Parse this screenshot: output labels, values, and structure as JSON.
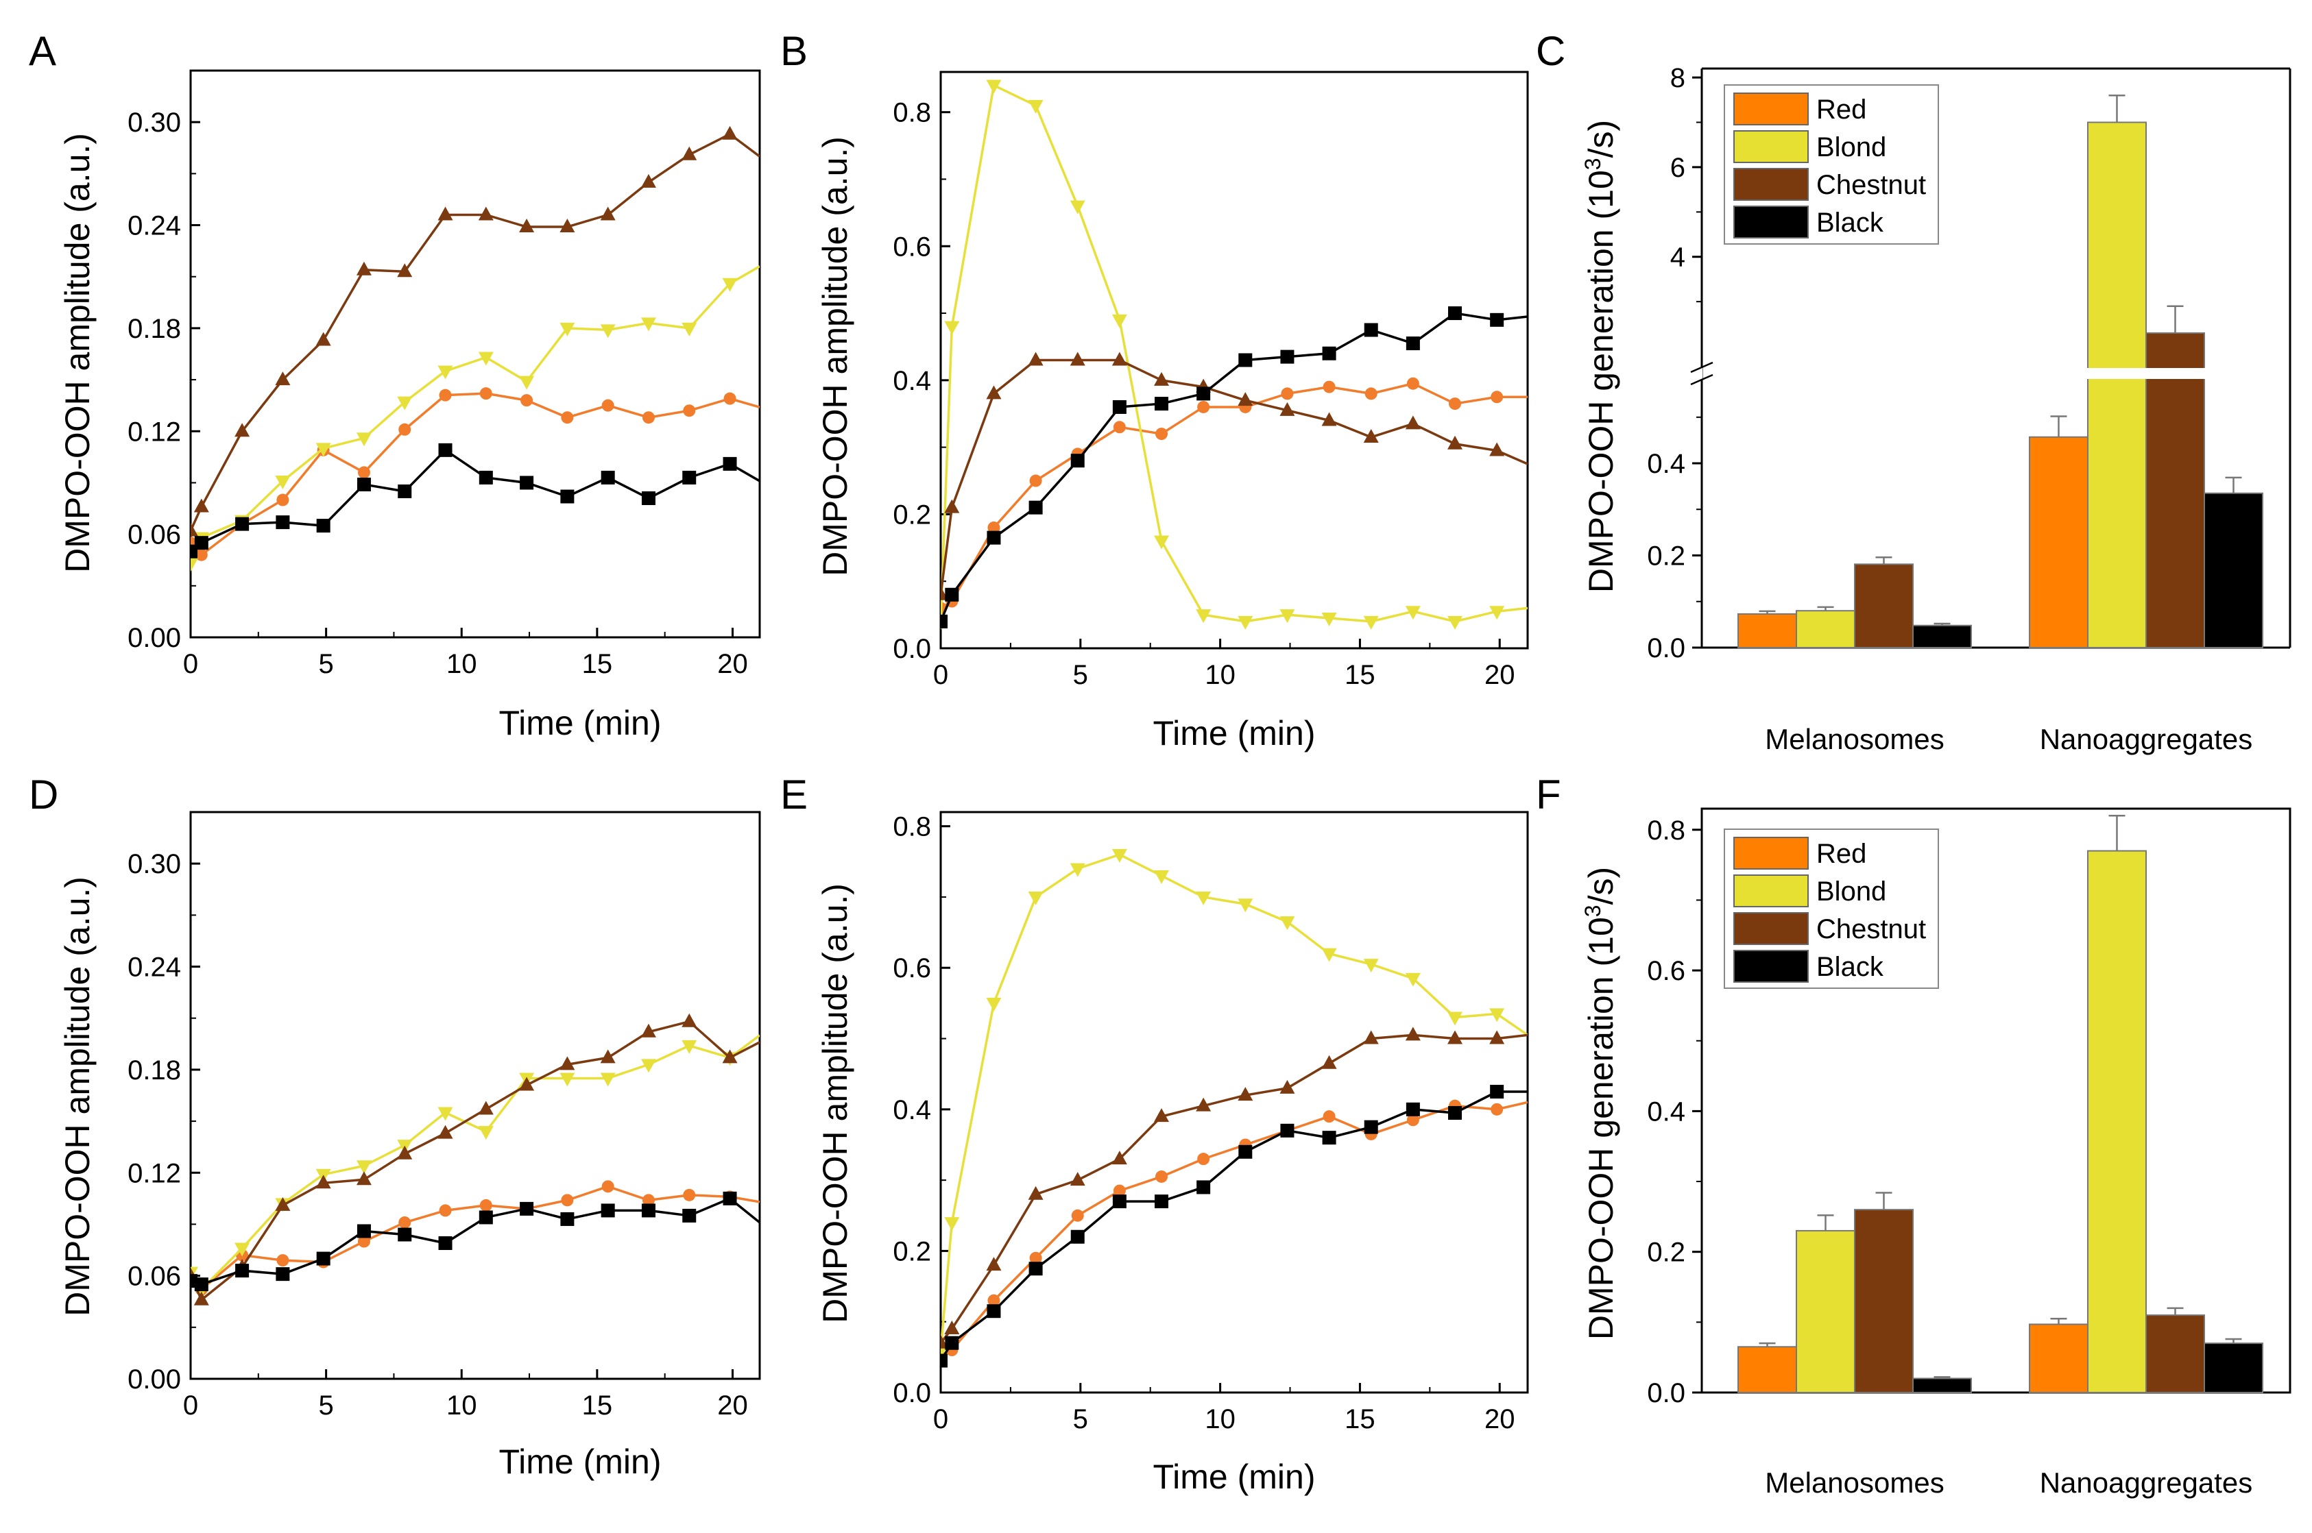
{
  "figure": {
    "time_xlabel": "Time (min)",
    "amp_ylabel": "DMPO-OOH amplitude (a.u.)",
    "gen_ylabel_main": "DMPO-OOH generation (10",
    "gen_ylabel_sup": "3",
    "gen_ylabel_tail": "/s)"
  },
  "series_styles": {
    "Red": {
      "color": "#F07C2C",
      "marker": "circle"
    },
    "Blond": {
      "color": "#E8E03A",
      "marker": "triangle-down"
    },
    "Chestnut": {
      "color": "#7B3A10",
      "marker": "triangle-up"
    },
    "Black": {
      "color": "#000000",
      "marker": "square"
    }
  },
  "bar_colors": {
    "Red": "#FF7F00",
    "Blond": "#E6E033",
    "Chestnut": "#7A3A0E",
    "Black": "#000000"
  },
  "chart_data": [
    {
      "panel": "A",
      "type": "line",
      "xlabel": "Time (min)",
      "ylabel": "DMPO-OOH amplitude (a.u.)",
      "xlim": [
        0,
        21
      ],
      "ylim": [
        0,
        0.33
      ],
      "xticks": [
        0,
        5,
        10,
        15,
        20
      ],
      "xtick_labels": [
        "0",
        "5",
        "10",
        "15",
        "20"
      ],
      "yticks": [
        0,
        0.06,
        0.12,
        0.18,
        0.24,
        0.3
      ],
      "ytick_labels": [
        "0.00",
        "0.06",
        "0.12",
        "0.18",
        "0.24",
        "0.30"
      ],
      "x": [
        0,
        0.4,
        1.9,
        3.4,
        4.9,
        6.4,
        7.9,
        9.4,
        10.9,
        12.4,
        13.9,
        15.4,
        16.9,
        18.4,
        19.9,
        21
      ],
      "series": [
        {
          "name": "Red",
          "values": [
            0.055,
            0.048,
            0.066,
            0.08,
            0.109,
            0.096,
            0.121,
            0.141,
            0.142,
            0.138,
            0.128,
            0.135,
            0.128,
            0.132,
            0.139,
            0.134
          ]
        },
        {
          "name": "Blond",
          "values": [
            0.043,
            0.058,
            0.068,
            0.091,
            0.11,
            0.116,
            0.137,
            0.155,
            0.163,
            0.149,
            0.18,
            0.179,
            0.183,
            0.18,
            0.206,
            0.216
          ]
        },
        {
          "name": "Chestnut",
          "values": [
            0.062,
            0.076,
            0.12,
            0.15,
            0.173,
            0.214,
            0.213,
            0.246,
            0.246,
            0.239,
            0.239,
            0.246,
            0.265,
            0.281,
            0.293,
            0.28
          ]
        },
        {
          "name": "Black",
          "values": [
            0.05,
            0.055,
            0.066,
            0.067,
            0.065,
            0.089,
            0.085,
            0.109,
            0.093,
            0.09,
            0.082,
            0.093,
            0.081,
            0.093,
            0.101,
            0.091
          ]
        }
      ]
    },
    {
      "panel": "B",
      "type": "line",
      "xlabel": "Time (min)",
      "ylabel": "DMPO-OOH amplitude (a.u.)",
      "xlim": [
        0,
        21
      ],
      "ylim": [
        0,
        0.86
      ],
      "xticks": [
        0,
        5,
        10,
        15,
        20
      ],
      "xtick_labels": [
        "0",
        "5",
        "10",
        "15",
        "20"
      ],
      "yticks": [
        0,
        0.2,
        0.4,
        0.6,
        0.8
      ],
      "ytick_labels": [
        "0.0",
        "0.2",
        "0.4",
        "0.6",
        "0.8"
      ],
      "x": [
        0,
        0.4,
        1.9,
        3.4,
        4.9,
        6.4,
        7.9,
        9.4,
        10.9,
        12.4,
        13.9,
        15.4,
        16.9,
        18.4,
        19.9,
        21
      ],
      "series": [
        {
          "name": "Red",
          "values": [
            0.06,
            0.07,
            0.18,
            0.25,
            0.29,
            0.33,
            0.32,
            0.36,
            0.36,
            0.38,
            0.39,
            0.38,
            0.395,
            0.365,
            0.375,
            0.375
          ]
        },
        {
          "name": "Blond",
          "values": [
            0.04,
            0.48,
            0.84,
            0.81,
            0.66,
            0.49,
            0.16,
            0.05,
            0.04,
            0.05,
            0.045,
            0.04,
            0.055,
            0.04,
            0.055,
            0.06
          ]
        },
        {
          "name": "Chestnut",
          "values": [
            0.08,
            0.21,
            0.38,
            0.43,
            0.43,
            0.43,
            0.4,
            0.39,
            0.37,
            0.355,
            0.34,
            0.315,
            0.335,
            0.305,
            0.295,
            0.275
          ]
        },
        {
          "name": "Black",
          "values": [
            0.04,
            0.08,
            0.165,
            0.21,
            0.28,
            0.36,
            0.365,
            0.38,
            0.43,
            0.435,
            0.44,
            0.475,
            0.455,
            0.5,
            0.49,
            0.495
          ]
        }
      ]
    },
    {
      "panel": "C",
      "type": "bar",
      "broken_axis": true,
      "ylabel": "DMPO-OOH generation (10^3/s)",
      "categories": [
        "Melanosomes",
        "Nanoaggregates"
      ],
      "lower_ylim": [
        0,
        0.58
      ],
      "lower_yticks": [
        0,
        0.2,
        0.4
      ],
      "lower_ytick_labels": [
        "0.0",
        "0.2",
        "0.4"
      ],
      "upper_ylim": [
        1.55,
        8.2
      ],
      "upper_yticks": [
        4,
        6,
        8
      ],
      "upper_ytick_labels": [
        "4",
        "6",
        "8"
      ],
      "series": [
        {
          "name": "Red",
          "values": [
            0.073,
            0.457
          ],
          "errors": [
            0.006,
            0.045
          ]
        },
        {
          "name": "Blond",
          "values": [
            0.08,
            7.0
          ],
          "errors": [
            0.008,
            0.6
          ]
        },
        {
          "name": "Chestnut",
          "values": [
            0.181,
            2.3
          ],
          "errors": [
            0.015,
            0.6
          ]
        },
        {
          "name": "Black",
          "values": [
            0.048,
            0.335
          ],
          "errors": [
            0.004,
            0.034
          ]
        }
      ],
      "legend": [
        "Red",
        "Blond",
        "Chestnut",
        "Black"
      ]
    },
    {
      "panel": "D",
      "type": "line",
      "xlabel": "Time (min)",
      "ylabel": "DMPO-OOH amplitude (a.u.)",
      "xlim": [
        0,
        21
      ],
      "ylim": [
        0,
        0.33
      ],
      "xticks": [
        0,
        5,
        10,
        15,
        20
      ],
      "xtick_labels": [
        "0",
        "5",
        "10",
        "15",
        "20"
      ],
      "yticks": [
        0,
        0.06,
        0.12,
        0.18,
        0.24,
        0.3
      ],
      "ytick_labels": [
        "0.00",
        "0.06",
        "0.12",
        "0.18",
        "0.24",
        "0.30"
      ],
      "x": [
        0,
        0.4,
        1.9,
        3.4,
        4.9,
        6.4,
        7.9,
        9.4,
        10.9,
        12.4,
        13.9,
        15.4,
        16.9,
        18.4,
        19.9,
        21
      ],
      "series": [
        {
          "name": "Red",
          "values": [
            0.058,
            0.052,
            0.072,
            0.069,
            0.068,
            0.08,
            0.091,
            0.098,
            0.101,
            0.099,
            0.104,
            0.112,
            0.104,
            0.107,
            0.106,
            0.103
          ]
        },
        {
          "name": "Blond",
          "values": [
            0.062,
            0.052,
            0.076,
            0.102,
            0.119,
            0.124,
            0.136,
            0.155,
            0.144,
            0.175,
            0.175,
            0.175,
            0.183,
            0.194,
            0.187,
            0.2
          ]
        },
        {
          "name": "Chestnut",
          "values": [
            0.06,
            0.046,
            0.065,
            0.101,
            0.114,
            0.116,
            0.131,
            0.143,
            0.157,
            0.171,
            0.183,
            0.187,
            0.202,
            0.208,
            0.187,
            0.196
          ]
        },
        {
          "name": "Black",
          "values": [
            0.057,
            0.055,
            0.063,
            0.061,
            0.07,
            0.086,
            0.084,
            0.079,
            0.094,
            0.099,
            0.093,
            0.098,
            0.098,
            0.095,
            0.105,
            0.091
          ]
        }
      ]
    },
    {
      "panel": "E",
      "type": "line",
      "xlabel": "Time (min)",
      "ylabel": "DMPO-OOH amplitude (a.u.)",
      "xlim": [
        0,
        21
      ],
      "ylim": [
        0,
        0.82
      ],
      "xticks": [
        0,
        5,
        10,
        15,
        20
      ],
      "xtick_labels": [
        "0",
        "5",
        "10",
        "15",
        "20"
      ],
      "yticks": [
        0,
        0.2,
        0.4,
        0.6,
        0.8
      ],
      "ytick_labels": [
        "0.0",
        "0.2",
        "0.4",
        "0.6",
        "0.8"
      ],
      "x": [
        0,
        0.4,
        1.9,
        3.4,
        4.9,
        6.4,
        7.9,
        9.4,
        10.9,
        12.4,
        13.9,
        15.4,
        16.9,
        18.4,
        19.9,
        21
      ],
      "series": [
        {
          "name": "Red",
          "values": [
            0.05,
            0.06,
            0.13,
            0.19,
            0.25,
            0.285,
            0.305,
            0.33,
            0.35,
            0.37,
            0.39,
            0.365,
            0.385,
            0.405,
            0.4,
            0.41
          ]
        },
        {
          "name": "Blond",
          "values": [
            0.06,
            0.24,
            0.55,
            0.7,
            0.74,
            0.76,
            0.73,
            0.7,
            0.69,
            0.665,
            0.62,
            0.605,
            0.585,
            0.53,
            0.535,
            0.505
          ]
        },
        {
          "name": "Chestnut",
          "values": [
            0.07,
            0.09,
            0.18,
            0.28,
            0.3,
            0.33,
            0.39,
            0.405,
            0.42,
            0.43,
            0.465,
            0.5,
            0.505,
            0.5,
            0.5,
            0.505
          ]
        },
        {
          "name": "Black",
          "values": [
            0.045,
            0.07,
            0.115,
            0.175,
            0.22,
            0.27,
            0.27,
            0.29,
            0.34,
            0.37,
            0.36,
            0.375,
            0.4,
            0.395,
            0.425,
            0.425
          ]
        }
      ]
    },
    {
      "panel": "F",
      "type": "bar",
      "ylabel": "DMPO-OOH generation (10^3/s)",
      "categories": [
        "Melanosomes",
        "Nanoaggregates"
      ],
      "ylim": [
        0,
        0.83
      ],
      "yticks": [
        0,
        0.2,
        0.4,
        0.6,
        0.8
      ],
      "ytick_labels": [
        "0.0",
        "0.2",
        "0.4",
        "0.6",
        "0.8"
      ],
      "series": [
        {
          "name": "Red",
          "values": [
            0.065,
            0.097
          ],
          "errors": [
            0.005,
            0.008
          ]
        },
        {
          "name": "Blond",
          "values": [
            0.23,
            0.77
          ],
          "errors": [
            0.022,
            0.05
          ]
        },
        {
          "name": "Chestnut",
          "values": [
            0.26,
            0.11
          ],
          "errors": [
            0.024,
            0.01
          ]
        },
        {
          "name": "Black",
          "values": [
            0.02,
            0.07
          ],
          "errors": [
            0.002,
            0.006
          ]
        }
      ],
      "legend": [
        "Red",
        "Blond",
        "Chestnut",
        "Black"
      ]
    }
  ]
}
